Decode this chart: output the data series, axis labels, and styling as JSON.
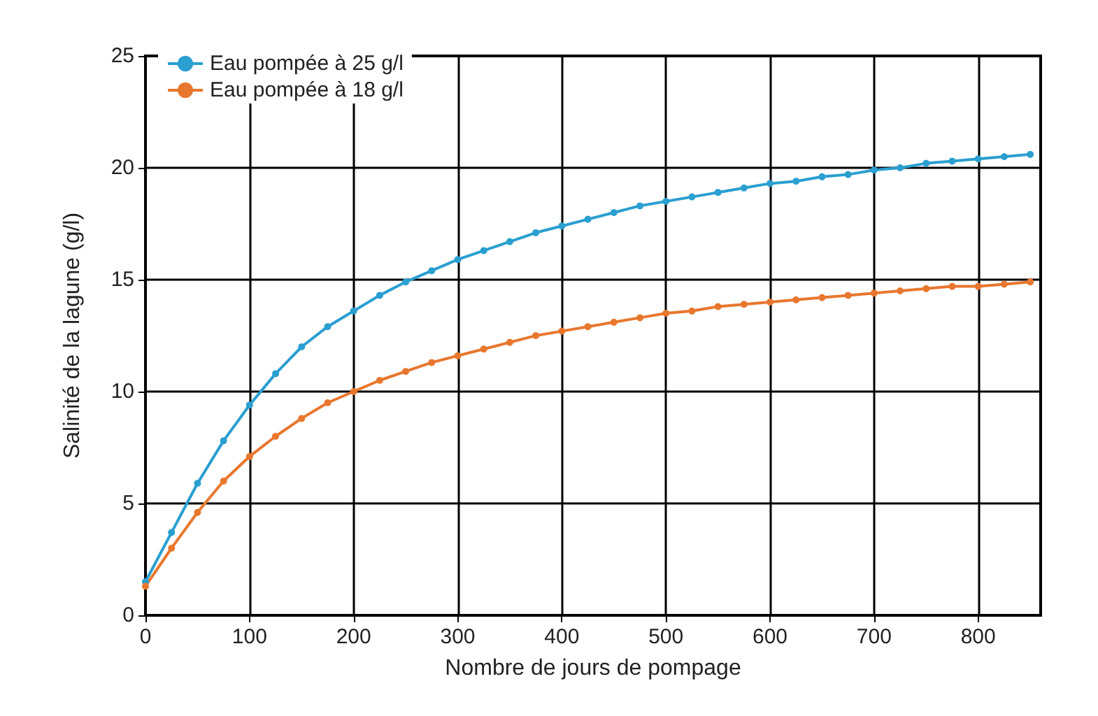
{
  "chart_data": {
    "type": "line",
    "xlabel": "Nombre de jours de pompage",
    "ylabel": "Salinité de la lagune (g/l)",
    "x": [
      0,
      25,
      50,
      75,
      100,
      125,
      150,
      175,
      200,
      225,
      250,
      275,
      300,
      325,
      350,
      375,
      400,
      425,
      450,
      475,
      500,
      525,
      550,
      575,
      600,
      625,
      650,
      675,
      700,
      725,
      750,
      775,
      800,
      825,
      850
    ],
    "series": [
      {
        "name": "Eau pompée à 25 g/l",
        "color": "#2a9fd0",
        "values": [
          1.5,
          3.7,
          5.9,
          7.8,
          9.4,
          10.8,
          12.0,
          12.9,
          13.6,
          14.3,
          14.9,
          15.4,
          15.9,
          16.3,
          16.7,
          17.1,
          17.4,
          17.7,
          18.0,
          18.3,
          18.5,
          18.7,
          18.9,
          19.1,
          19.3,
          19.4,
          19.6,
          19.7,
          19.9,
          20.0,
          20.2,
          20.3,
          20.4,
          20.5,
          20.6
        ]
      },
      {
        "name": "Eau pompée à 18 g/l",
        "color": "#e8772e",
        "values": [
          1.3,
          3.0,
          4.6,
          6.0,
          7.1,
          8.0,
          8.8,
          9.5,
          10.0,
          10.5,
          10.9,
          11.3,
          11.6,
          11.9,
          12.2,
          12.5,
          12.7,
          12.9,
          13.1,
          13.3,
          13.5,
          13.6,
          13.8,
          13.9,
          14.0,
          14.1,
          14.2,
          14.3,
          14.4,
          14.5,
          14.6,
          14.7,
          14.7,
          14.8,
          14.9
        ]
      }
    ],
    "xlim": [
      0,
      860
    ],
    "xticks": [
      0,
      100,
      200,
      300,
      400,
      500,
      600,
      700,
      800
    ],
    "ylim": [
      0,
      25
    ],
    "yticks": [
      0,
      5,
      10,
      15,
      20,
      25
    ],
    "grid": true,
    "legend": "top left",
    "marker": "circle",
    "line_style": "solid"
  }
}
